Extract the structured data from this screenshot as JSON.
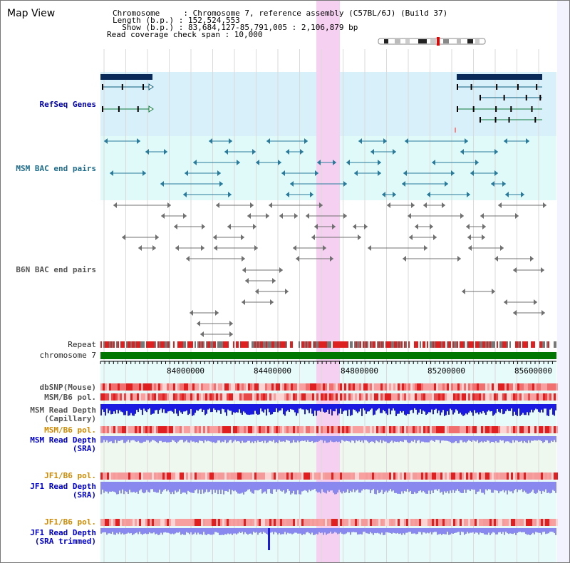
{
  "header": {
    "title": "Map View",
    "chromosome_line": "Chromosome     : Chromosome 7, reference assembly (C57BL/6J) (Build 37)",
    "length_line": "Length (b.p.) : 152,524,553",
    "show_line": "  Show (b.p.) : 83,684,127-85,791,005 : 2,106,879 bp",
    "coverage_line": "Read coverage check span : 10,000"
  },
  "tracks": {
    "refseq": "RefSeq Genes",
    "msm_bac": "MSM BAC end pairs",
    "b6n_bac": "B6N BAC end pairs",
    "repeat": "Repeat",
    "chromosome": "chromosome 7",
    "dbsnp": "dbSNP(Mouse)",
    "msm_b6_pol_1": "MSM/B6 pol.",
    "msm_read_depth_cap_1": "MSM Read Depth",
    "msm_read_depth_cap_2": "(Capillary)",
    "msm_b6_pol_2": "MSM/B6 pol.",
    "msm_read_depth_sra_1": "MSM Read Depth",
    "msm_read_depth_sra_2": "(SRA)",
    "jf1_b6_pol_1": "JF1/B6 pol.",
    "jf1_read_depth_1": "JF1 Read Depth",
    "jf1_read_depth_2": "(SRA)",
    "jf1_b6_pol_2": "JF1/B6 pol.",
    "jf1_read_depth_trim_1": "JF1 Read Depth",
    "jf1_read_depth_trim_2": "(SRA trimmed)"
  },
  "axis": {
    "ticks": [
      "84000000",
      "84400000",
      "84800000",
      "85200000",
      "85600000"
    ]
  },
  "colors": {
    "highlight": "#f5d0f0",
    "refseq_bg": "#d8f0fa",
    "msm_bg": "#e0fafa",
    "chromosome": "#007700",
    "depth_blue": "#1a1ae0",
    "depth_light": "#8888ee"
  }
}
